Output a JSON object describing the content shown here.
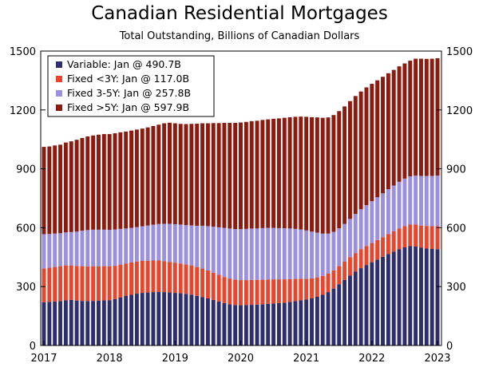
{
  "chart_data": {
    "type": "bar",
    "stacked": true,
    "title": "Canadian Residential Mortgages",
    "subtitle": "Total Outstanding, Billions of Canadian Dollars",
    "ylim": [
      0,
      1500
    ],
    "y_ticks": [
      0,
      300,
      600,
      900,
      1200,
      1500
    ],
    "y_tick_labels": [
      "0",
      "300",
      "600",
      "900",
      "1200",
      "1500"
    ],
    "x_tick_labels": [
      "2017",
      "2018",
      "2019",
      "2020",
      "2021",
      "2022",
      "2023"
    ],
    "legend_position": "top-left",
    "legend": [
      "Variable: Jan @ 490.7B",
      "Fixed <3Y: Jan @ 117.0B",
      "Fixed 3-5Y: Jan @ 257.8B",
      "Fixed >5Y: Jan @ 597.9B"
    ],
    "colors": {
      "variable": "#2e2d6e",
      "fixed_lt3": "#e8452c",
      "fixed_3to5": "#9b8fe0",
      "fixed_gt5": "#8b1a0f"
    },
    "categories": [
      "2017-01",
      "2017-02",
      "2017-03",
      "2017-04",
      "2017-05",
      "2017-06",
      "2017-07",
      "2017-08",
      "2017-09",
      "2017-10",
      "2017-11",
      "2017-12",
      "2018-01",
      "2018-02",
      "2018-03",
      "2018-04",
      "2018-05",
      "2018-06",
      "2018-07",
      "2018-08",
      "2018-09",
      "2018-10",
      "2018-11",
      "2018-12",
      "2019-01",
      "2019-02",
      "2019-03",
      "2019-04",
      "2019-05",
      "2019-06",
      "2019-07",
      "2019-08",
      "2019-09",
      "2019-10",
      "2019-11",
      "2019-12",
      "2020-01",
      "2020-02",
      "2020-03",
      "2020-04",
      "2020-05",
      "2020-06",
      "2020-07",
      "2020-08",
      "2020-09",
      "2020-10",
      "2020-11",
      "2020-12",
      "2021-01",
      "2021-02",
      "2021-03",
      "2021-04",
      "2021-05",
      "2021-06",
      "2021-07",
      "2021-08",
      "2021-09",
      "2021-10",
      "2021-11",
      "2021-12",
      "2022-01",
      "2022-02",
      "2022-03",
      "2022-04",
      "2022-05",
      "2022-06",
      "2022-07",
      "2022-08",
      "2022-09",
      "2022-10",
      "2022-11",
      "2022-12",
      "2023-01"
    ],
    "series": [
      {
        "name": "Variable: Jan @ 490.7B",
        "values": [
          220,
          222,
          224,
          226,
          230,
          232,
          229,
          227,
          226,
          227,
          228,
          230,
          231,
          236,
          244,
          252,
          258,
          264,
          268,
          270,
          272,
          273,
          272,
          270,
          268,
          266,
          263,
          259,
          253,
          247,
          240,
          232,
          224,
          216,
          210,
          206,
          205,
          206,
          207,
          208,
          210,
          212,
          214,
          216,
          218,
          222,
          226,
          230,
          234,
          240,
          248,
          258,
          272,
          290,
          312,
          334,
          356,
          376,
          394,
          410,
          424,
          438,
          452,
          466,
          478,
          490,
          500,
          506,
          504,
          498,
          494,
          492,
          490.7
        ]
      },
      {
        "name": "Fixed <3Y: Jan @ 117.0B",
        "values": [
          172,
          174,
          176,
          178,
          178,
          176,
          176,
          177,
          177,
          176,
          175,
          174,
          172,
          170,
          168,
          166,
          165,
          164,
          163,
          162,
          161,
          160,
          158,
          156,
          154,
          152,
          150,
          149,
          147,
          145,
          142,
          139,
          136,
          133,
          131,
          129,
          128,
          127,
          127,
          126,
          125,
          124,
          123,
          121,
          119,
          116,
          113,
          110,
          106,
          102,
          99,
          96,
          94,
          93,
          93,
          93,
          94,
          95,
          96,
          97,
          98,
          99,
          100,
          102,
          104,
          106,
          108,
          110,
          112,
          113,
          115,
          116,
          117.0
        ]
      },
      {
        "name": "Fixed 3-5Y: Jan @ 257.8B",
        "values": [
          175,
          172,
          170,
          168,
          168,
          170,
          175,
          181,
          185,
          187,
          187,
          186,
          186,
          185,
          182,
          178,
          176,
          175,
          176,
          179,
          182,
          186,
          190,
          194,
          196,
          198,
          200,
          204,
          210,
          218,
          226,
          234,
          242,
          250,
          255,
          258,
          260,
          261,
          262,
          262,
          263,
          263,
          262,
          261,
          260,
          258,
          255,
          251,
          246,
          238,
          228,
          216,
          204,
          196,
          192,
          192,
          195,
          199,
          204,
          208,
          213,
          218,
          223,
          228,
          233,
          238,
          242,
          246,
          250,
          253,
          255,
          256,
          257.8
        ]
      },
      {
        "name": "Fixed >5Y: Jan @ 597.9B",
        "values": [
          445,
          446,
          449,
          451,
          458,
          462,
          468,
          472,
          477,
          480,
          484,
          487,
          488,
          490,
          492,
          494,
          496,
          497,
          498,
          500,
          503,
          506,
          512,
          515,
          514,
          513,
          515,
          517,
          520,
          522,
          524,
          528,
          531,
          535,
          538,
          541,
          543,
          545,
          547,
          549,
          551,
          553,
          556,
          559,
          563,
          567,
          571,
          575,
          579,
          583,
          587,
          590,
          592,
          595,
          597,
          599,
          600,
          601,
          600,
          600,
          598,
          596,
          594,
          591,
          589,
          588,
          587,
          589,
          595,
          597,
          596,
          597,
          597.9
        ]
      }
    ]
  }
}
